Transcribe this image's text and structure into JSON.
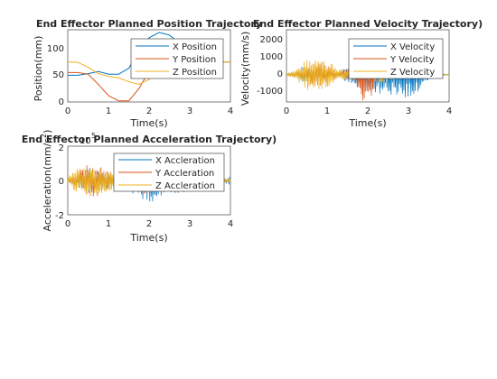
{
  "colors": {
    "x": "#0072BD",
    "y": "#D95319",
    "z": "#EDB120"
  },
  "plots": {
    "position": {
      "title": "End Effector Planned Position Trajectory",
      "xlabel": "Time(s)",
      "ylabel": "Position(mm)",
      "xticks": [
        "0",
        "1",
        "2",
        "3",
        "4"
      ],
      "yticks": [
        "0",
        "50",
        "100"
      ],
      "legend": [
        "X Position",
        "Y Position",
        "Z Position"
      ]
    },
    "velocity": {
      "title": "End Effector Planned Velocity Trajectory)",
      "xlabel": "Time(s)",
      "ylabel": "Velocity(mm/s)",
      "xticks": [
        "0",
        "1",
        "2",
        "3",
        "4"
      ],
      "yticks": [
        "-1000",
        "0",
        "1000",
        "2000"
      ],
      "legend": [
        "X Velocity",
        "Y Velocity",
        "Z Velocity"
      ]
    },
    "acceleration": {
      "title": "End Effector Planned Acceleration Trajectory)",
      "xlabel": "Time(s)",
      "ylabel_main": "Acceleration(mm/s",
      "ylabel_sup": "2",
      "ylabel_end": ")",
      "exponent_base": "10",
      "exponent_power": "5",
      "xticks": [
        "0",
        "1",
        "2",
        "3",
        "4"
      ],
      "yticks": [
        "-2",
        "0",
        "2"
      ],
      "legend": [
        "X Accleration",
        "Y Accleration",
        "Z Accleration"
      ]
    }
  },
  "chart_data": [
    {
      "type": "line",
      "title": "End Effector Planned Position Trajectory",
      "xlabel": "Time(s)",
      "ylabel": "Position(mm)",
      "xlim": [
        0,
        4
      ],
      "ylim": [
        0,
        135
      ],
      "grid": false,
      "legend": "top-right",
      "x": [
        0,
        0.25,
        0.5,
        0.75,
        1.0,
        1.25,
        1.5,
        1.75,
        2.0,
        2.25,
        2.5,
        2.75,
        3.0,
        3.25,
        3.5,
        3.75,
        4.0
      ],
      "series": [
        {
          "name": "X Position",
          "values": [
            50,
            50,
            53,
            57,
            52,
            52,
            63,
            95,
            120,
            130,
            125,
            110,
            93,
            80,
            75,
            75,
            75
          ]
        },
        {
          "name": "Y Position",
          "values": [
            55,
            55,
            52,
            33,
            12,
            2,
            2,
            25,
            58,
            75,
            75,
            75,
            75,
            75,
            75,
            75,
            75
          ]
        },
        {
          "name": "Z Position",
          "values": [
            75,
            74,
            65,
            53,
            48,
            45,
            38,
            33,
            42,
            62,
            74,
            75,
            75,
            75,
            75,
            75,
            75
          ]
        }
      ]
    },
    {
      "type": "line",
      "title": "End Effector Planned Velocity Trajectory)",
      "xlabel": "Time(s)",
      "ylabel": "Velocity(mm/s)",
      "xlim": [
        0,
        4
      ],
      "ylim": [
        -1400,
        2300
      ],
      "grid": false,
      "legend": "top-right",
      "x": [
        0,
        0.25,
        0.5,
        0.75,
        1.0,
        1.25,
        1.5,
        1.75,
        2.0,
        2.25,
        2.5,
        2.75,
        3.0,
        3.25,
        3.5,
        3.75,
        4.0
      ],
      "series": [
        {
          "name": "X Velocity",
          "amplitude": [
            30,
            200,
            500,
            450,
            150,
            150,
            400,
            700,
            900,
            1000,
            1100,
            1200,
            1150,
            900,
            300,
            50,
            20
          ]
        },
        {
          "name": "Y Velocity",
          "amplitude": [
            30,
            100,
            300,
            700,
            500,
            200,
            300,
            600,
            2100,
            300,
            100,
            50,
            30,
            20,
            20,
            20,
            20
          ]
        },
        {
          "name": "Z Velocity",
          "amplitude": [
            50,
            300,
            800,
            900,
            700,
            400,
            200,
            150,
            300,
            500,
            300,
            150,
            80,
            40,
            30,
            20,
            20
          ]
        }
      ]
    },
    {
      "type": "line",
      "title": "End Effector Planned Acceleration Trajectory)",
      "xlabel": "Time(s)",
      "ylabel": "Acceleration(mm/s^2)",
      "xlim": [
        0,
        4
      ],
      "ylim": [
        -2.1,
        2.1
      ],
      "y_multiplier": "10^5",
      "grid": false,
      "legend": "top-right",
      "x": [
        0,
        0.25,
        0.5,
        0.75,
        1.0,
        1.25,
        1.5,
        1.75,
        2.0,
        2.25,
        2.5,
        2.75,
        3.0,
        3.25,
        3.5,
        3.75,
        4.0
      ],
      "series": [
        {
          "name": "X Accleration",
          "amplitude": [
            0.1,
            0.4,
            0.8,
            0.8,
            0.5,
            0.3,
            0.6,
            1.2,
            1.5,
            1.2,
            0.9,
            0.8,
            0.9,
            0.4,
            0.1,
            0.05,
            0.3
          ]
        },
        {
          "name": "Y Accleration",
          "amplitude": [
            0.1,
            0.5,
            1.0,
            1.0,
            0.6,
            0.3,
            0.5,
            0.8,
            0.9,
            0.5,
            0.2,
            0.1,
            0.05,
            0.05,
            0.05,
            0.05,
            0.05
          ]
        },
        {
          "name": "Z Accleration",
          "amplitude": [
            0.3,
            0.8,
            0.9,
            0.8,
            0.7,
            0.4,
            0.3,
            0.2,
            0.2,
            0.2,
            0.1,
            0.05,
            0.05,
            0.05,
            0.05,
            0.05,
            0.2
          ]
        }
      ]
    }
  ]
}
